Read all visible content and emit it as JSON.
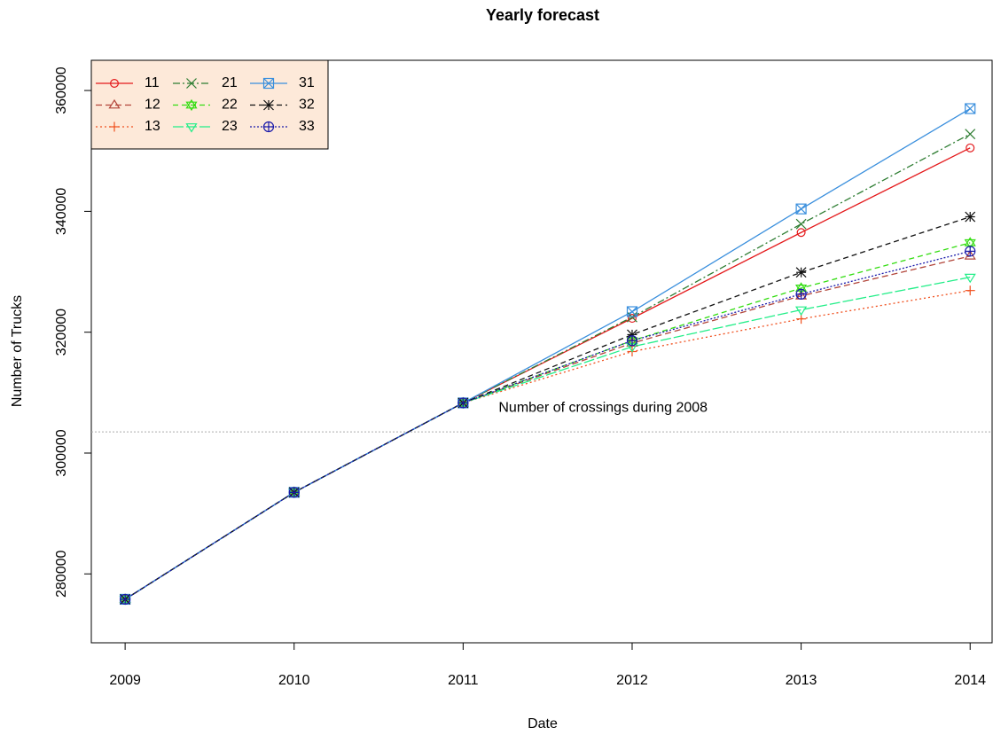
{
  "chart_data": {
    "type": "line",
    "title": "Yearly forecast",
    "x_label": "Date",
    "y_label": "Number of Trucks",
    "x": [
      2009,
      2010,
      2011,
      2012,
      2013,
      2014
    ],
    "xlim": [
      2008.8,
      2014.13
    ],
    "xticks": [
      2009,
      2010,
      2011,
      2012,
      2013,
      2014
    ],
    "ylim": [
      268600,
      365000
    ],
    "yticks": [
      280000,
      300000,
      320000,
      340000,
      360000
    ],
    "legend": "top-left",
    "legend_fill": "#fde9d9",
    "reference_line": {
      "value": 303500,
      "label": "Number of crossings during 2008",
      "color": "#aaaaaa"
    },
    "series": [
      {
        "name": "11",
        "color": "#e41a1c",
        "dash": "",
        "marker": "circle",
        "values": [
          275800,
          293500,
          308300,
          322300,
          336500,
          350500
        ]
      },
      {
        "name": "12",
        "color": "#b2453a",
        "dash": "7,4",
        "marker": "triangle",
        "values": [
          275800,
          293500,
          308300,
          318200,
          326000,
          332600
        ]
      },
      {
        "name": "13",
        "color": "#f0501e",
        "dash": "2,3",
        "marker": "plus",
        "values": [
          275800,
          293500,
          308300,
          316800,
          322200,
          326900
        ]
      },
      {
        "name": "21",
        "color": "#2e7d32",
        "dash": "8,3,2,3",
        "marker": "x",
        "values": [
          275800,
          293500,
          308300,
          322500,
          337900,
          352800
        ]
      },
      {
        "name": "22",
        "color": "#33dd11",
        "dash": "6,4",
        "marker": "star6",
        "values": [
          275800,
          293500,
          308300,
          318600,
          327300,
          334800
        ]
      },
      {
        "name": "23",
        "color": "#22ee88",
        "dash": "12,3",
        "marker": "triangle-down",
        "values": [
          275800,
          293500,
          308300,
          317600,
          323700,
          329100
        ]
      },
      {
        "name": "31",
        "color": "#3a8fdd",
        "dash": "",
        "marker": "square-x",
        "values": [
          275800,
          293500,
          308300,
          323400,
          340400,
          357000
        ]
      },
      {
        "name": "32",
        "color": "#111111",
        "dash": "6,4",
        "marker": "asterisk",
        "values": [
          275800,
          293500,
          308300,
          319600,
          329900,
          339100
        ]
      },
      {
        "name": "33",
        "color": "#1a1aaa",
        "dash": "2,2",
        "marker": "circle-plus",
        "values": [
          275800,
          293500,
          308300,
          318600,
          326300,
          333400
        ]
      }
    ]
  }
}
